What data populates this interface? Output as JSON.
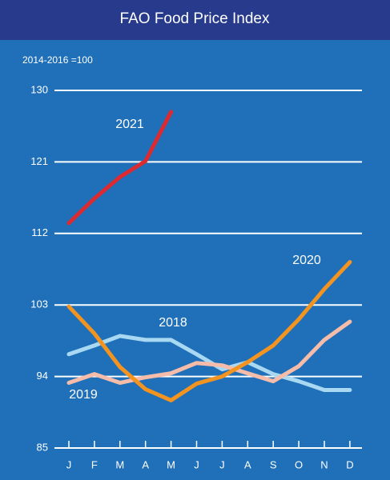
{
  "chart_data": {
    "type": "line",
    "title": "FAO Food Price Index",
    "subtitle": "2014-2016 =100",
    "categories": [
      "J",
      "F",
      "M",
      "A",
      "M",
      "J",
      "J",
      "A",
      "S",
      "O",
      "N",
      "D"
    ],
    "ylim": [
      85,
      130
    ],
    "yticks": [
      85,
      94,
      103,
      112,
      121,
      130
    ],
    "grid": true,
    "series": [
      {
        "name": "2018",
        "color": "#a9d9f2",
        "values": [
          96.8,
          97.9,
          99.1,
          98.6,
          98.6,
          96.8,
          94.9,
          95.8,
          94.3,
          93.4,
          92.3,
          92.3
        ]
      },
      {
        "name": "2019",
        "color": "#f6bcaa",
        "values": [
          93.2,
          94.3,
          93.2,
          93.9,
          94.4,
          95.7,
          95.4,
          94.4,
          93.4,
          95.3,
          98.6,
          100.9
        ]
      },
      {
        "name": "2020",
        "color": "#f39320",
        "values": [
          102.8,
          99.4,
          95.2,
          92.4,
          91.0,
          93.1,
          94.0,
          95.8,
          97.9,
          101.2,
          105.0,
          108.4
        ]
      },
      {
        "name": "2021",
        "color": "#dc2a30",
        "values": [
          113.3,
          116.4,
          119.1,
          121.1,
          127.3,
          null,
          null,
          null,
          null,
          null,
          null,
          null
        ]
      }
    ]
  }
}
